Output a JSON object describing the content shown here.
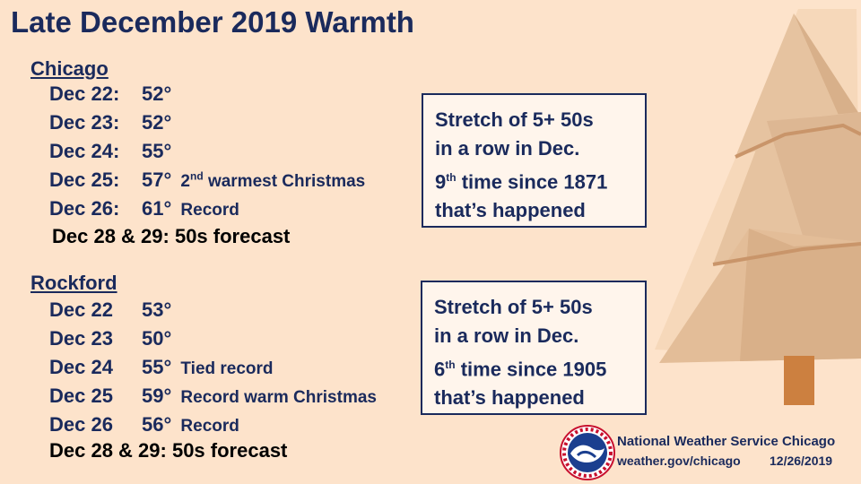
{
  "title": "Late December 2019 Warmth",
  "chicago": {
    "heading": "Chicago",
    "rows": [
      {
        "date": "Dec 22:",
        "temp": "52°",
        "note": ""
      },
      {
        "date": "Dec 23:",
        "temp": "52°",
        "note": ""
      },
      {
        "date": "Dec 24:",
        "temp": "55°",
        "note": ""
      },
      {
        "date": "Dec 25:",
        "temp": "57°",
        "note_sup_pre": "2",
        "note_sup": "nd",
        "note": "warmest Christmas"
      },
      {
        "date": "Dec 26:",
        "temp": "61°",
        "note": "Record"
      }
    ],
    "forecast": "Dec 28 & 29:  50s forecast",
    "box": {
      "line1": "Stretch of 5+ 50s",
      "line2": "in a row in Dec.",
      "line3_num": "9",
      "line3_sup": "th",
      "line3_rest": " time since 1871",
      "line4": "that’s happened"
    }
  },
  "rockford": {
    "heading": "Rockford",
    "rows": [
      {
        "date": "Dec 22",
        "temp": "53°",
        "note": ""
      },
      {
        "date": "Dec 23",
        "temp": "50°",
        "note": ""
      },
      {
        "date": "Dec 24",
        "temp": "55°",
        "note": "Tied record"
      },
      {
        "date": "Dec 25",
        "temp": "59°",
        "note": "Record warm Christmas"
      },
      {
        "date": "Dec 26",
        "temp": "56°",
        "note": "Record"
      }
    ],
    "forecast": "Dec 28 & 29:  50s forecast",
    "box": {
      "line1": "Stretch of 5+ 50s",
      "line2": "in a row in Dec.",
      "line3_num": "6",
      "line3_sup": "th",
      "line3_rest": " time since 1905",
      "line4": "that’s happened"
    }
  },
  "footer": {
    "org": "National Weather Service Chicago",
    "url": "weather.gov/chicago",
    "date": "12/26/2019",
    "logo_ring_text": "NATIONAL WEATHER SERVICE"
  },
  "colors": {
    "background": "#fde3cb",
    "navy": "#1a2a5c",
    "box_fill": "#fff5ec",
    "tree_light": "#e6c3a0",
    "tree_dark": "#d4a47a",
    "trunk": "#cc8040"
  },
  "icons": [
    "christmas-tree-icon",
    "nws-logo-icon"
  ]
}
